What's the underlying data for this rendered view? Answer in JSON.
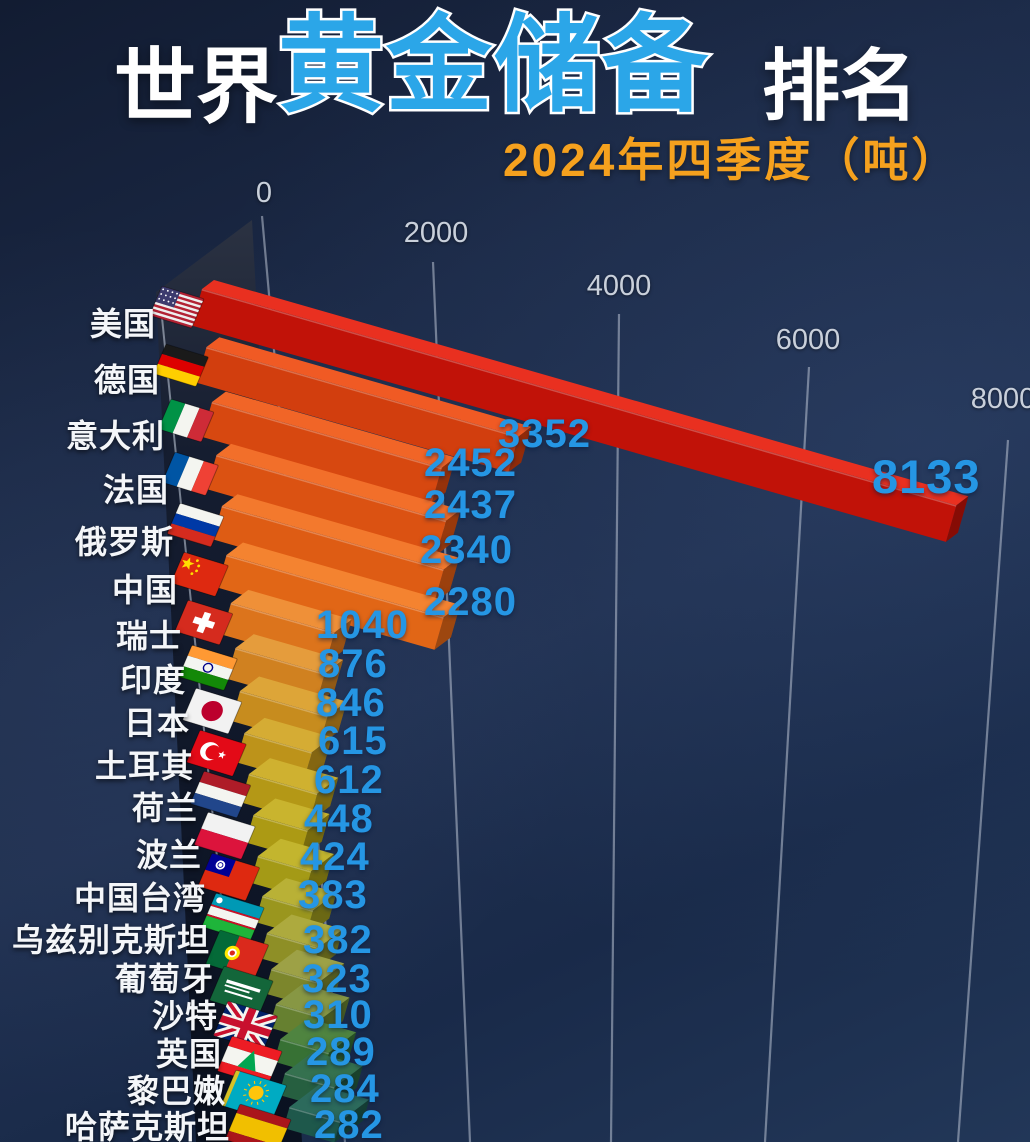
{
  "title": {
    "part1": "世界",
    "highlight": "黄金储备",
    "part2": "排名",
    "subtitle": "2024年四季度（吨）"
  },
  "axis": {
    "ticks": [
      "0",
      "2000",
      "4000",
      "6000",
      "8000"
    ]
  },
  "rows": [
    {
      "label": "美国",
      "value": "8133",
      "flag": "us"
    },
    {
      "label": "德国",
      "value": "3352",
      "flag": "de"
    },
    {
      "label": "意大利",
      "value": "2452",
      "flag": "it"
    },
    {
      "label": "法国",
      "value": "2437",
      "flag": "fr"
    },
    {
      "label": "俄罗斯",
      "value": "2340",
      "flag": "ru"
    },
    {
      "label": "中国",
      "value": "2280",
      "flag": "cn"
    },
    {
      "label": "瑞士",
      "value": "1040",
      "flag": "ch"
    },
    {
      "label": "印度",
      "value": "876",
      "flag": "in"
    },
    {
      "label": "日本",
      "value": "846",
      "flag": "jp"
    },
    {
      "label": "土耳其",
      "value": "615",
      "flag": "tr"
    },
    {
      "label": "荷兰",
      "value": "612",
      "flag": "nl"
    },
    {
      "label": "波兰",
      "value": "448",
      "flag": "pl"
    },
    {
      "label": "中国台湾",
      "value": "424",
      "flag": "tw"
    },
    {
      "label": "乌兹别克斯坦",
      "value": "383",
      "flag": "uz"
    },
    {
      "label": "葡萄牙",
      "value": "382",
      "flag": "pt"
    },
    {
      "label": "沙特",
      "value": "323",
      "flag": "sa"
    },
    {
      "label": "英国",
      "value": "310",
      "flag": "gb"
    },
    {
      "label": "黎巴嫩",
      "value": "289",
      "flag": "lb"
    },
    {
      "label": "哈萨克斯坦",
      "value": "284",
      "flag": "kz"
    },
    {
      "label": "",
      "value": "282",
      "flag": "es"
    }
  ],
  "chart_data": {
    "type": "bar",
    "orientation": "horizontal",
    "title": "世界黄金储备排名",
    "subtitle": "2024年四季度（吨）",
    "unit": "吨",
    "xlim": [
      0,
      8000
    ],
    "x_ticks": [
      0,
      2000,
      4000,
      6000,
      8000
    ],
    "grid": true,
    "categories": [
      "美国",
      "德国",
      "意大利",
      "法国",
      "俄罗斯",
      "中国",
      "瑞士",
      "印度",
      "日本",
      "土耳其",
      "荷兰",
      "波兰",
      "中国台湾",
      "乌兹别克斯坦",
      "葡萄牙",
      "沙特",
      "英国",
      "黎巴嫩",
      "哈萨克斯坦",
      ""
    ],
    "values": [
      8133,
      3352,
      2452,
      2437,
      2340,
      2280,
      1040,
      876,
      846,
      615,
      612,
      448,
      424,
      383,
      382,
      323,
      310,
      289,
      284,
      282
    ],
    "flags": [
      "us",
      "de",
      "it",
      "fr",
      "ru",
      "cn",
      "ch",
      "in",
      "jp",
      "tr",
      "nl",
      "pl",
      "tw",
      "uz",
      "pt",
      "sa",
      "gb",
      "lb",
      "kz",
      "es"
    ]
  },
  "colors": {
    "background": "#1c2a47",
    "title_text": "#ffffff",
    "title_highlight": "#2ba6e8",
    "subtitle": "#f5a11e",
    "value_text": "#2596e4",
    "axis_text": "#c9d0db",
    "gridline": "#c8d0de",
    "wall": "#11182a",
    "bar_colors": [
      {
        "top": "#e93020",
        "front": "#c11208"
      },
      {
        "top": "#f05a24",
        "front": "#d23e0e"
      },
      {
        "top": "#f16527",
        "front": "#d74810"
      },
      {
        "top": "#f26f2a",
        "front": "#db5212"
      },
      {
        "top": "#f3792d",
        "front": "#de5c14"
      },
      {
        "top": "#f48330",
        "front": "#e16616"
      },
      {
        "top": "#ef9038",
        "front": "#dc741c"
      },
      {
        "top": "#e59c3c",
        "front": "#d08120"
      },
      {
        "top": "#dda538",
        "front": "#c78c1e"
      },
      {
        "top": "#d5ac34",
        "front": "#bd931a"
      },
      {
        "top": "#cfb130",
        "front": "#b49816"
      },
      {
        "top": "#c9b42e",
        "front": "#ac9a14"
      },
      {
        "top": "#c3b52e",
        "front": "#a49a16"
      },
      {
        "top": "#b9b136",
        "front": "#9a961e"
      },
      {
        "top": "#adaa3e",
        "front": "#8e8f26"
      },
      {
        "top": "#9da146",
        "front": "#7c862c"
      },
      {
        "top": "#879744",
        "front": "#668030"
      },
      {
        "top": "#4f8440",
        "front": "#377134"
      },
      {
        "top": "#35714f",
        "front": "#265f40"
      },
      {
        "top": "#2c6a5c",
        "front": "#1e584b"
      }
    ]
  }
}
